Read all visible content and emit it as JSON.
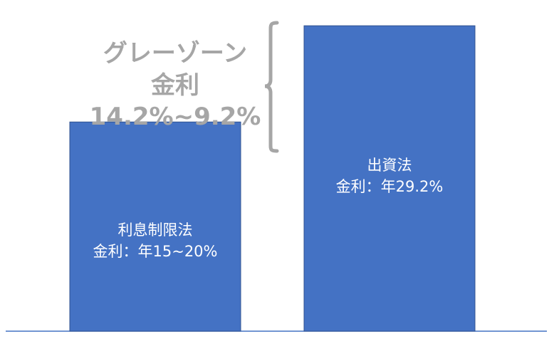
{
  "chart_data": {
    "type": "bar",
    "categories": [
      "利息制限法",
      "出資法"
    ],
    "series": [
      {
        "values": [
          20,
          29.2
        ]
      }
    ],
    "data_labels": [
      [
        "利息制限法",
        "金利：年15~20%"
      ],
      [
        "出資法",
        "金利：年29.2%"
      ]
    ],
    "bar_color": "#4472c4",
    "axis_color": "#4472c4",
    "bracket_color": "#a6a6a6",
    "annotation": {
      "lines": [
        "グレーゾーン",
        "金利",
        "14.2%~9.2%"
      ],
      "color": "#a6a6a6"
    },
    "ylim": [
      0,
      30.3
    ],
    "grid": false,
    "legend": "none"
  }
}
